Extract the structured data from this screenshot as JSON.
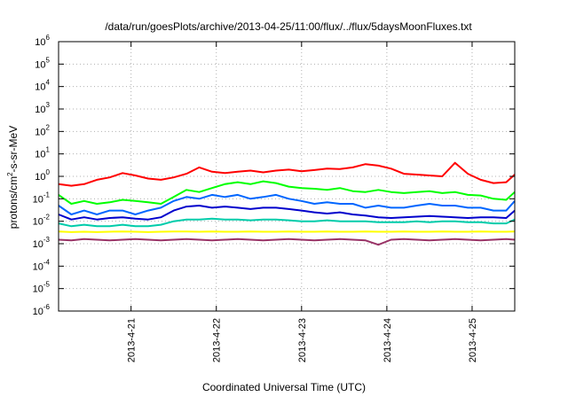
{
  "chart_data": {
    "type": "line",
    "title": "/data/run/goesPlots/archive/2013-04-25/11:00/flux/../flux/5daysMoonFluxes.txt",
    "xlabel": "Coordinated Universal Time (UTC)",
    "ylabel_parts": [
      "protons/cm",
      "2",
      "-s-sr-MeV"
    ],
    "yscale": "log",
    "ylim": [
      1e-06,
      1000000.0
    ],
    "xlim": [
      20.15,
      25.5
    ],
    "x_ticks": [
      {
        "value": 21,
        "label": "2013-4-21"
      },
      {
        "value": 22,
        "label": "2013-4-22"
      },
      {
        "value": 23,
        "label": "2013-4-23"
      },
      {
        "value": 24,
        "label": "2013-4-24"
      },
      {
        "value": 25,
        "label": "2013-4-25"
      }
    ],
    "y_ticks": [
      {
        "exp": -6,
        "base": "10",
        "power": "-6"
      },
      {
        "exp": -5,
        "base": "10",
        "power": "-5"
      },
      {
        "exp": -4,
        "base": "10",
        "power": "-4"
      },
      {
        "exp": -3,
        "base": "10",
        "power": "-3"
      },
      {
        "exp": -2,
        "base": "10",
        "power": "-2"
      },
      {
        "exp": -1,
        "base": "10",
        "power": "-1"
      },
      {
        "exp": 0,
        "base": "10",
        "power": "0"
      },
      {
        "exp": 1,
        "base": "10",
        "power": "1"
      },
      {
        "exp": 2,
        "base": "10",
        "power": "2"
      },
      {
        "exp": 3,
        "base": "10",
        "power": "3"
      },
      {
        "exp": 4,
        "base": "10",
        "power": "4"
      },
      {
        "exp": 5,
        "base": "10",
        "power": "5"
      },
      {
        "exp": 6,
        "base": "10",
        "power": "6"
      }
    ],
    "grid": true,
    "series": [
      {
        "color": "#ff0000",
        "x": [
          20.15,
          20.3,
          20.45,
          20.6,
          20.75,
          20.9,
          21.05,
          21.2,
          21.35,
          21.5,
          21.65,
          21.8,
          21.95,
          22.1,
          22.25,
          22.4,
          22.55,
          22.7,
          22.85,
          23.0,
          23.15,
          23.3,
          23.45,
          23.6,
          23.75,
          23.9,
          24.05,
          24.2,
          24.35,
          24.5,
          24.65,
          24.8,
          24.95,
          25.1,
          25.25,
          25.4,
          25.5
        ],
        "y": [
          0.45,
          0.38,
          0.45,
          0.7,
          0.9,
          1.4,
          1.1,
          0.8,
          0.7,
          0.9,
          1.3,
          2.5,
          1.6,
          1.4,
          1.6,
          1.8,
          1.5,
          1.8,
          2.0,
          1.7,
          1.9,
          2.2,
          2.1,
          2.5,
          3.5,
          3.0,
          2.2,
          1.3,
          1.2,
          1.1,
          1.0,
          4.0,
          1.3,
          0.7,
          0.5,
          0.55,
          1.2
        ]
      },
      {
        "color": "#00ff00",
        "x": [
          20.15,
          20.3,
          20.45,
          20.6,
          20.75,
          20.9,
          21.05,
          21.2,
          21.35,
          21.5,
          21.65,
          21.8,
          21.95,
          22.1,
          22.25,
          22.4,
          22.55,
          22.7,
          22.85,
          23.0,
          23.15,
          23.3,
          23.45,
          23.6,
          23.75,
          23.9,
          24.05,
          24.2,
          24.35,
          24.5,
          24.65,
          24.8,
          24.95,
          25.1,
          25.25,
          25.4,
          25.5
        ],
        "y": [
          0.15,
          0.06,
          0.08,
          0.06,
          0.07,
          0.09,
          0.08,
          0.07,
          0.06,
          0.12,
          0.25,
          0.2,
          0.3,
          0.45,
          0.55,
          0.45,
          0.6,
          0.5,
          0.35,
          0.3,
          0.28,
          0.25,
          0.3,
          0.22,
          0.2,
          0.25,
          0.2,
          0.18,
          0.2,
          0.22,
          0.18,
          0.2,
          0.15,
          0.14,
          0.1,
          0.09,
          0.2
        ]
      },
      {
        "color": "#0066ff",
        "x": [
          20.15,
          20.3,
          20.45,
          20.6,
          20.75,
          20.9,
          21.05,
          21.2,
          21.35,
          21.5,
          21.65,
          21.8,
          21.95,
          22.1,
          22.25,
          22.4,
          22.55,
          22.7,
          22.85,
          23.0,
          23.15,
          23.3,
          23.45,
          23.6,
          23.75,
          23.9,
          24.05,
          24.2,
          24.35,
          24.5,
          24.65,
          24.8,
          24.95,
          25.1,
          25.25,
          25.4,
          25.5
        ],
        "y": [
          0.05,
          0.02,
          0.03,
          0.02,
          0.03,
          0.03,
          0.02,
          0.03,
          0.04,
          0.08,
          0.12,
          0.1,
          0.15,
          0.12,
          0.15,
          0.1,
          0.12,
          0.15,
          0.1,
          0.08,
          0.06,
          0.07,
          0.06,
          0.06,
          0.04,
          0.05,
          0.04,
          0.04,
          0.05,
          0.06,
          0.05,
          0.05,
          0.04,
          0.04,
          0.03,
          0.03,
          0.08
        ]
      },
      {
        "color": "#0000cc",
        "x": [
          20.15,
          20.3,
          20.45,
          20.6,
          20.75,
          20.9,
          21.05,
          21.2,
          21.35,
          21.5,
          21.65,
          21.8,
          21.95,
          22.1,
          22.25,
          22.4,
          22.55,
          22.7,
          22.85,
          23.0,
          23.15,
          23.3,
          23.45,
          23.6,
          23.75,
          23.9,
          24.05,
          24.2,
          24.35,
          24.5,
          24.65,
          24.8,
          24.95,
          25.1,
          25.25,
          25.4,
          25.5
        ],
        "y": [
          0.02,
          0.012,
          0.015,
          0.012,
          0.014,
          0.015,
          0.013,
          0.012,
          0.015,
          0.03,
          0.045,
          0.05,
          0.04,
          0.045,
          0.04,
          0.035,
          0.04,
          0.04,
          0.035,
          0.03,
          0.025,
          0.022,
          0.025,
          0.02,
          0.018,
          0.015,
          0.014,
          0.015,
          0.016,
          0.017,
          0.016,
          0.015,
          0.014,
          0.015,
          0.015,
          0.014,
          0.03
        ]
      },
      {
        "color": "#00ccaa",
        "x": [
          20.15,
          20.3,
          20.45,
          20.6,
          20.75,
          20.9,
          21.05,
          21.2,
          21.35,
          21.5,
          21.65,
          21.8,
          21.95,
          22.1,
          22.25,
          22.4,
          22.55,
          22.7,
          22.85,
          23.0,
          23.15,
          23.3,
          23.45,
          23.6,
          23.75,
          23.9,
          24.05,
          24.2,
          24.35,
          24.5,
          24.65,
          24.8,
          24.95,
          25.1,
          25.25,
          25.4,
          25.5
        ],
        "y": [
          0.008,
          0.006,
          0.007,
          0.006,
          0.006,
          0.007,
          0.006,
          0.006,
          0.007,
          0.01,
          0.012,
          0.012,
          0.013,
          0.012,
          0.012,
          0.011,
          0.012,
          0.012,
          0.011,
          0.01,
          0.01,
          0.011,
          0.01,
          0.01,
          0.01,
          0.009,
          0.009,
          0.009,
          0.01,
          0.009,
          0.01,
          0.01,
          0.009,
          0.009,
          0.008,
          0.008,
          0.012
        ]
      },
      {
        "color": "#ffff00",
        "x": [
          20.15,
          20.3,
          20.45,
          20.6,
          20.75,
          20.9,
          21.05,
          21.2,
          21.35,
          21.5,
          21.65,
          21.8,
          21.95,
          22.1,
          22.25,
          22.4,
          22.55,
          22.7,
          22.85,
          23.0,
          23.15,
          23.3,
          23.45,
          23.6,
          23.75,
          23.9,
          24.05,
          24.2,
          24.35,
          24.5,
          24.65,
          24.8,
          24.95,
          25.1,
          25.25,
          25.4,
          25.5
        ],
        "y": [
          0.0035,
          0.0033,
          0.0034,
          0.0033,
          0.0034,
          0.0035,
          0.0034,
          0.0033,
          0.0034,
          0.0035,
          0.0035,
          0.0034,
          0.0035,
          0.0034,
          0.0034,
          0.0035,
          0.0034,
          0.0034,
          0.0035,
          0.0034,
          0.0034,
          0.0035,
          0.0034,
          0.0034,
          0.0035,
          0.0034,
          0.0034,
          0.0035,
          0.0034,
          0.0034,
          0.0035,
          0.0034,
          0.0034,
          0.0035,
          0.0034,
          0.0034,
          0.0035
        ]
      },
      {
        "color": "#993366",
        "x": [
          20.15,
          20.3,
          20.45,
          20.6,
          20.75,
          20.9,
          21.05,
          21.2,
          21.35,
          21.5,
          21.65,
          21.8,
          21.95,
          22.1,
          22.25,
          22.4,
          22.55,
          22.7,
          22.85,
          23.0,
          23.15,
          23.3,
          23.45,
          23.6,
          23.75,
          23.9,
          24.05,
          24.2,
          24.35,
          24.5,
          24.65,
          24.8,
          24.95,
          25.1,
          25.25,
          25.4,
          25.5
        ],
        "y": [
          0.0015,
          0.0014,
          0.0016,
          0.0015,
          0.0014,
          0.0015,
          0.0016,
          0.0015,
          0.0014,
          0.0015,
          0.0016,
          0.0015,
          0.0014,
          0.0015,
          0.0016,
          0.0015,
          0.0014,
          0.0015,
          0.0016,
          0.0015,
          0.0014,
          0.0015,
          0.0016,
          0.0015,
          0.0014,
          0.0009,
          0.0015,
          0.0016,
          0.0015,
          0.0014,
          0.0015,
          0.0016,
          0.0015,
          0.0014,
          0.0015,
          0.0016,
          0.0015
        ]
      }
    ]
  }
}
